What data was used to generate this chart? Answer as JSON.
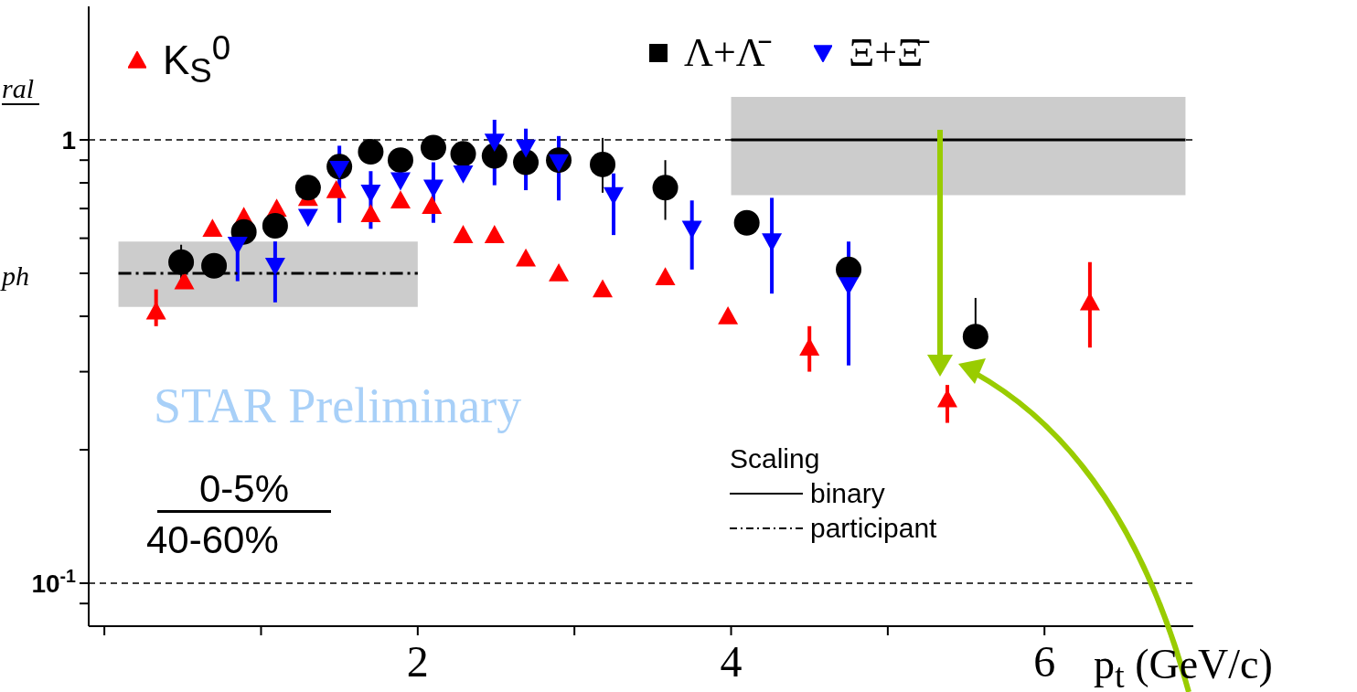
{
  "chart_data": {
    "type": "scatter",
    "xlabel": "p$_{t}$ (GeV/c)",
    "annotations": [
      "ral",
      "ph",
      "STAR Preliminary",
      "0-5%",
      "40-60%"
    ],
    "legend": "top",
    "legend_title": "Scaling",
    "log": "y",
    "grid": false,
    "xlim": [
      -0.1,
      6.95
    ],
    "xticks": [
      {
        "value": 0,
        "label": null
      },
      {
        "value": 1,
        "label": null
      },
      2,
      {
        "value": 3,
        "label": null
      },
      4,
      {
        "value": 5,
        "label": null
      },
      6
    ],
    "ylim": [
      0.08,
      2
    ],
    "yticks": [
      {
        "value": 0.09,
        "label": null
      },
      {
        "value": 0.1,
        "label": "10$^{-1}$"
      },
      {
        "value": 0.2,
        "label": null
      },
      {
        "value": 0.3,
        "label": null
      },
      {
        "value": 0.4,
        "label": null
      },
      {
        "value": 0.5,
        "label": null
      },
      {
        "value": 0.6,
        "label": null
      },
      {
        "value": 0.7,
        "label": null
      },
      {
        "value": 0.8,
        "label": null
      },
      {
        "value": 0.9,
        "label": null
      },
      1
    ],
    "ref_lines": [
      {
        "axis": "y",
        "value": 1,
        "line_style": "dashed",
        "color": "#000000"
      },
      {
        "axis": "y",
        "value": 0.1,
        "line_style": "dashed",
        "color": "#000000"
      }
    ],
    "series": [
      {
        "name": "K$_{S}$$^{0}$",
        "marker": "triangle",
        "color": "#ff0000",
        "x": [
          0.33,
          0.51,
          0.69,
          0.89,
          1.1,
          1.3,
          1.48,
          1.7,
          1.89,
          2.09,
          2.29,
          2.49,
          2.69,
          2.9,
          3.18,
          3.58,
          3.98,
          4.5,
          5.38,
          6.29
        ],
        "values": [
          0.41,
          0.48,
          0.63,
          0.67,
          0.7,
          0.74,
          0.77,
          0.68,
          0.73,
          0.71,
          0.61,
          0.61,
          0.54,
          0.5,
          0.46,
          0.49,
          0.4,
          0.34,
          0.26,
          0.43
        ],
        "errors": [
          [
            0.38,
            0.46
          ],
          null,
          null,
          null,
          null,
          null,
          null,
          null,
          null,
          null,
          null,
          null,
          null,
          null,
          null,
          null,
          null,
          [
            0.3,
            0.38
          ],
          [
            0.23,
            0.28
          ],
          [
            0.34,
            0.53
          ]
        ]
      },
      {
        "name": "Λ+Λ̄",
        "marker": "circle",
        "color": "#000000",
        "x": [
          0.49,
          0.7,
          0.89,
          1.09,
          1.3,
          1.5,
          1.7,
          1.89,
          2.1,
          2.29,
          2.49,
          2.69,
          2.9,
          3.18,
          3.58,
          4.1,
          4.75,
          5.56
        ],
        "values": [
          0.53,
          0.52,
          0.62,
          0.64,
          0.78,
          0.87,
          0.94,
          0.9,
          0.96,
          0.93,
          0.92,
          0.89,
          0.9,
          0.88,
          0.78,
          0.65,
          0.51,
          0.36
        ],
        "errors": [
          [
            0.48,
            0.58
          ],
          null,
          null,
          null,
          null,
          null,
          null,
          null,
          null,
          null,
          null,
          null,
          null,
          [
            0.76,
            1.01
          ],
          [
            0.66,
            0.9
          ],
          null,
          null,
          [
            0.36,
            0.44
          ]
        ]
      },
      {
        "name": "Ξ+Ξ̄",
        "marker": "triangle-down",
        "color": "#0000ff",
        "x": [
          0.85,
          1.09,
          1.3,
          1.5,
          1.7,
          1.89,
          2.1,
          2.29,
          2.49,
          2.69,
          2.9,
          3.25,
          3.75,
          4.26,
          4.75
        ],
        "values": [
          0.58,
          0.52,
          0.67,
          0.86,
          0.76,
          0.81,
          0.78,
          0.84,
          0.99,
          0.96,
          0.89,
          0.75,
          0.63,
          0.59,
          0.47
        ],
        "errors": [
          [
            0.48,
            0.64
          ],
          [
            0.43,
            0.59
          ],
          null,
          [
            0.65,
            0.97
          ],
          [
            0.63,
            0.85
          ],
          null,
          [
            0.65,
            0.89
          ],
          null,
          [
            0.79,
            1.11
          ],
          [
            0.77,
            1.06
          ],
          [
            0.73,
            1.02
          ],
          [
            0.61,
            0.84
          ],
          [
            0.51,
            0.73
          ],
          [
            0.45,
            0.74
          ],
          [
            0.31,
            0.59
          ]
        ]
      },
      {
        "name": "binary",
        "type": "line",
        "marker": "none",
        "line_style": "solid",
        "color": "#000000",
        "x": [
          4,
          6.9
        ],
        "values": [
          1,
          1
        ],
        "lower": [
          0.75,
          0.75
        ],
        "upper": [
          1.25,
          1.25
        ]
      },
      {
        "name": "participant",
        "type": "line",
        "marker": "none",
        "line_style": "dashed",
        "color": "#000000",
        "x": [
          0.09,
          2
        ],
        "values": [
          0.5,
          0.5
        ],
        "lower": [
          0.42,
          0.42
        ],
        "upper": [
          0.59,
          0.59
        ]
      }
    ]
  }
}
